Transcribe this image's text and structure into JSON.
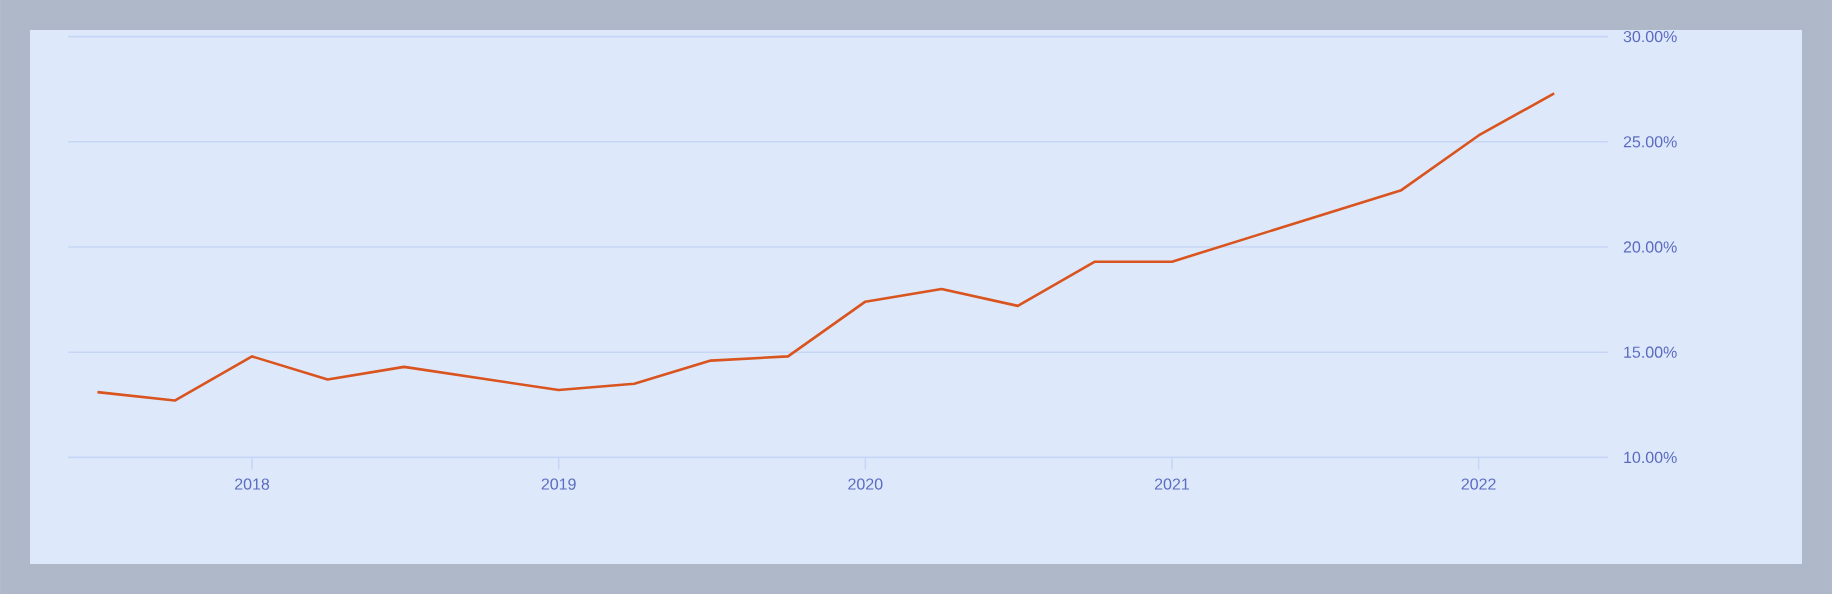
{
  "chart_data": {
    "type": "line",
    "x": [
      "2017-07-01",
      "2017-10-01",
      "2018-01-01",
      "2018-04-01",
      "2018-07-01",
      "2019-01-01",
      "2019-04-01",
      "2019-07-01",
      "2019-10-01",
      "2020-01-01",
      "2020-04-01",
      "2020-07-01",
      "2020-10-01",
      "2021-01-01",
      "2021-10-01",
      "2022-01-01",
      "2022-04-01"
    ],
    "series": [
      {
        "color": "#d9541e",
        "values": [
          13.1,
          12.7,
          14.8,
          13.7,
          14.3,
          13.2,
          13.5,
          14.6,
          14.8,
          17.4,
          18.0,
          17.2,
          19.3,
          19.3,
          22.7,
          25.3,
          27.3
        ]
      }
    ],
    "xlim": [
      "2017-05-27",
      "2022-06-04"
    ],
    "xticks": [
      {
        "value": "2018",
        "label": "2018"
      },
      {
        "value": "2019",
        "label": "2019"
      },
      {
        "value": "2020",
        "label": "2020"
      },
      {
        "value": "2021",
        "label": "2021"
      },
      {
        "value": "2022",
        "label": "2022"
      }
    ],
    "ylim": [
      10,
      30
    ],
    "yticks": [
      {
        "value": 10,
        "label": "10.00%"
      },
      {
        "value": 15,
        "label": "15.00%"
      },
      {
        "value": 20,
        "label": "20.00%"
      },
      {
        "value": 25,
        "label": "25.00%"
      },
      {
        "value": 30,
        "label": "30.00%"
      }
    ],
    "grid": "y",
    "marker": "none",
    "line_style": "solid"
  }
}
